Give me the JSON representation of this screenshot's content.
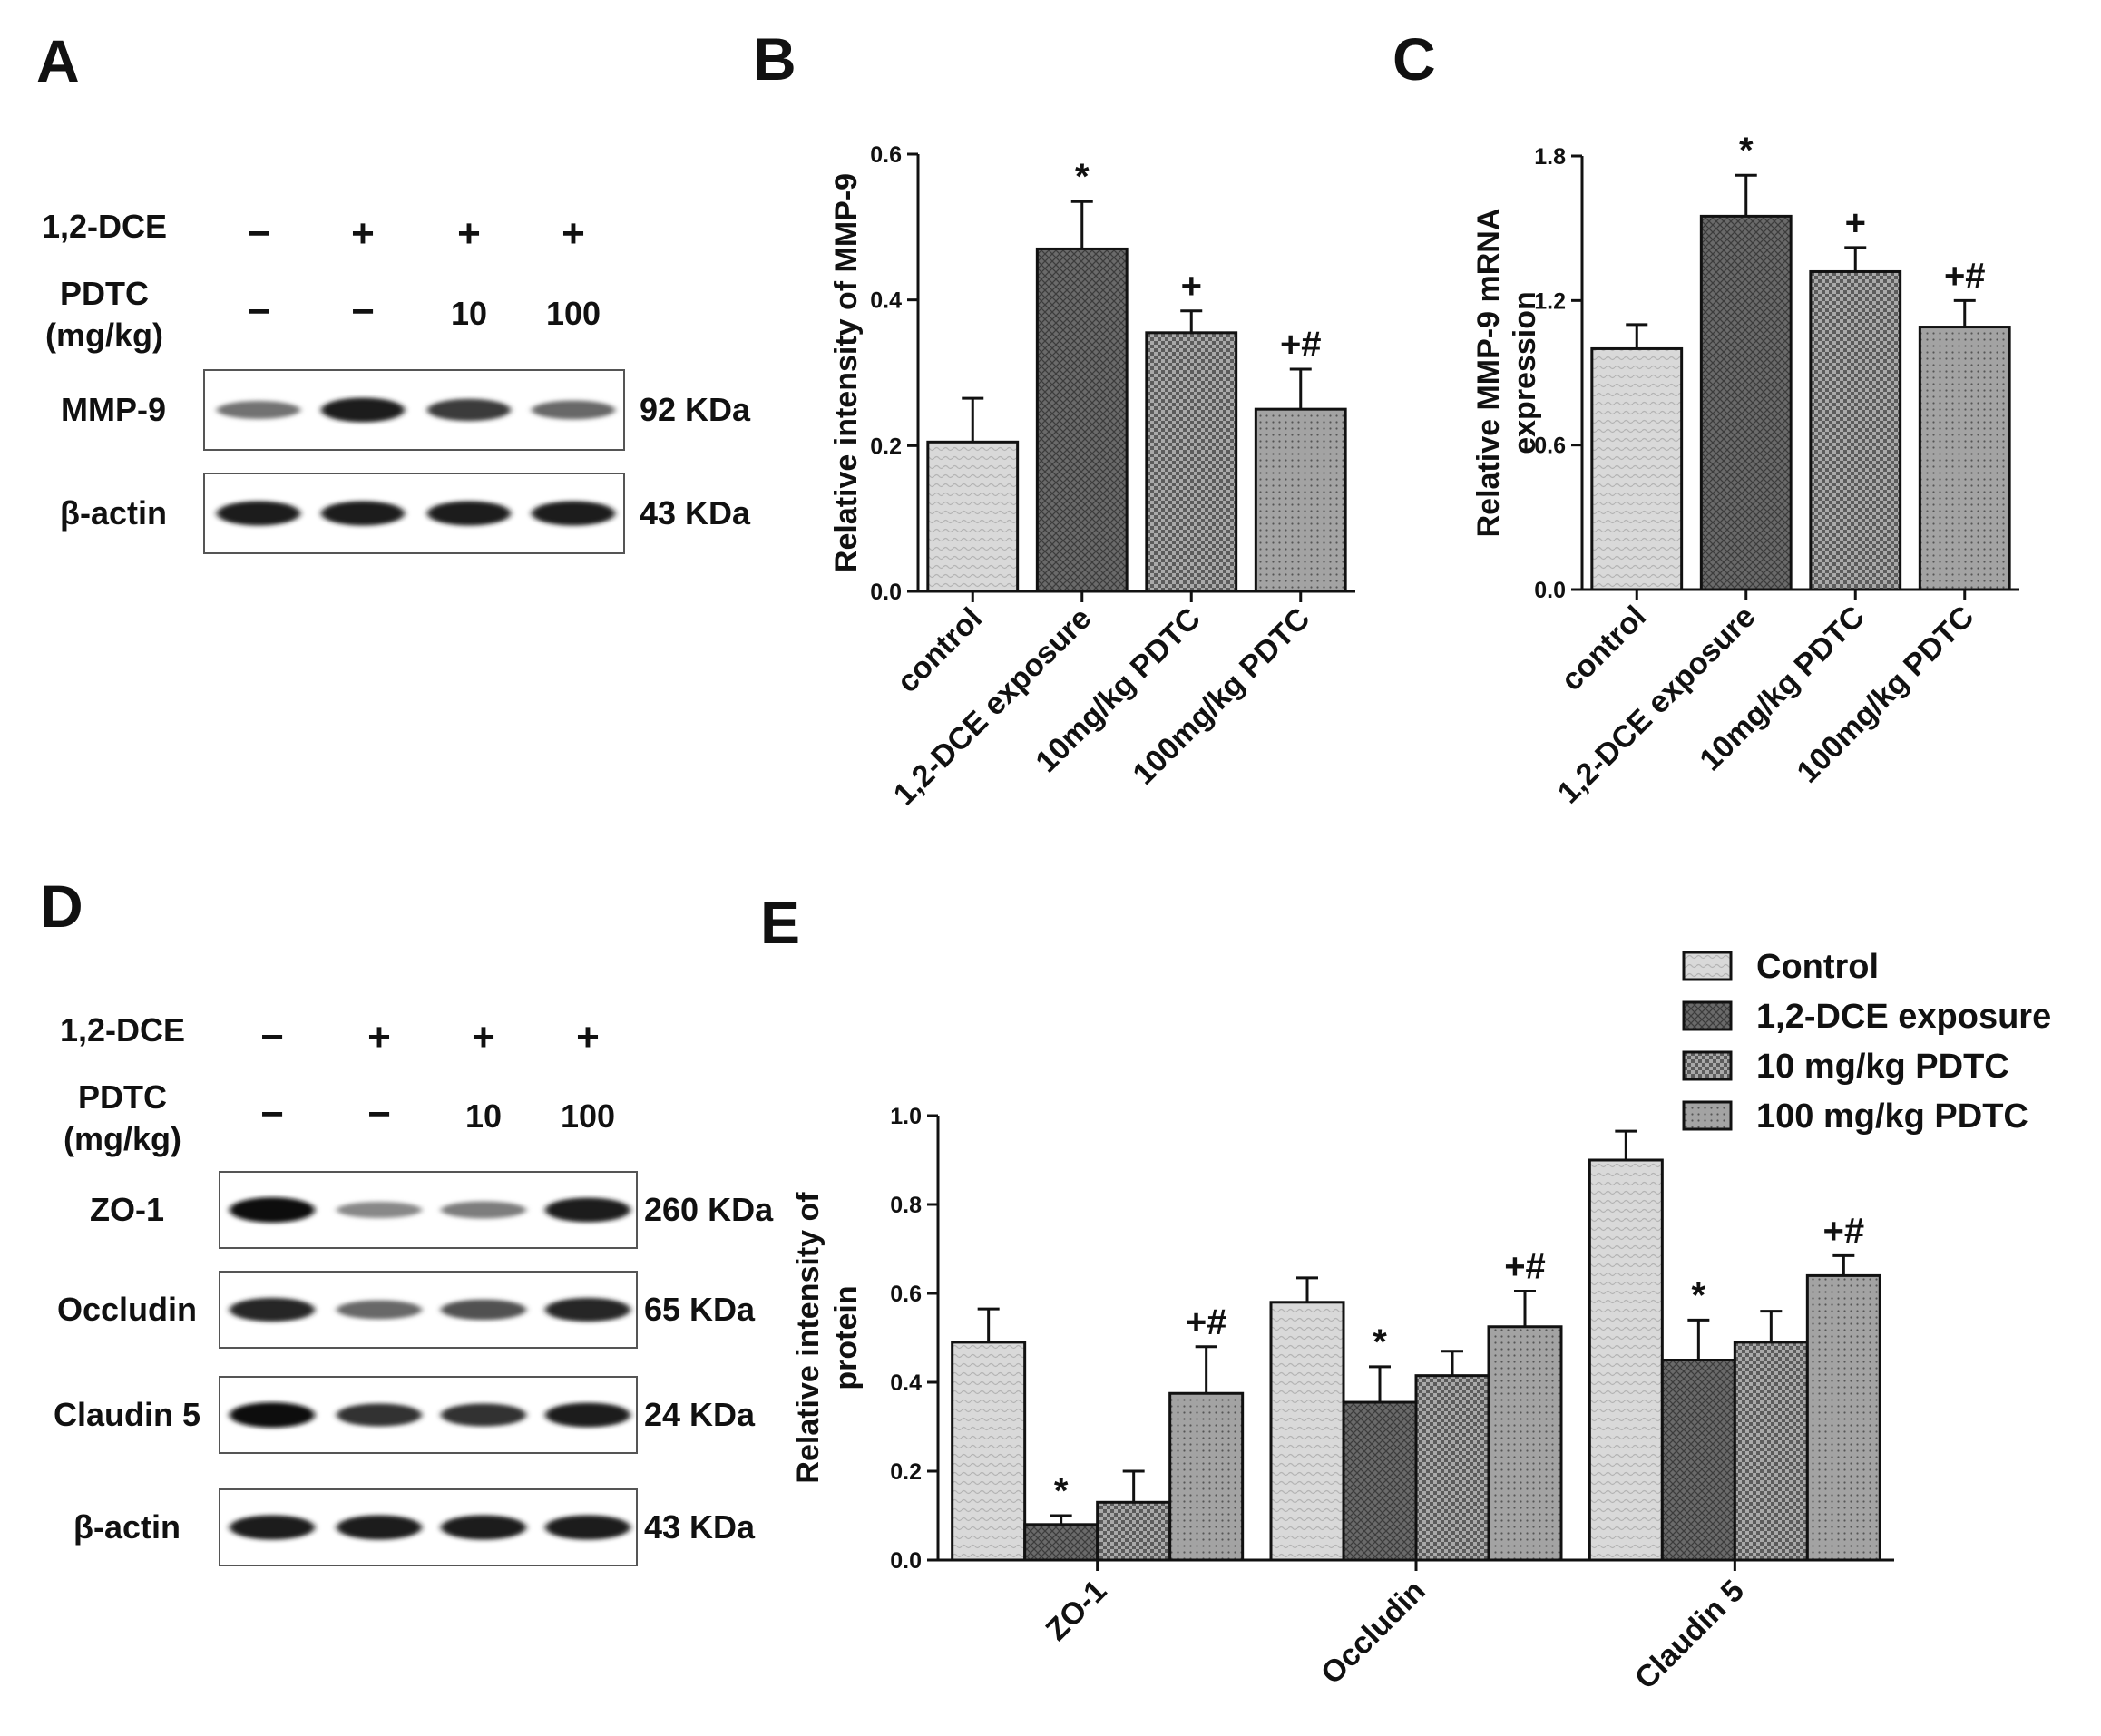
{
  "panels": {
    "A": {
      "letter": "A",
      "treatments": {
        "rows": [
          {
            "label": "1,2-DCE",
            "values": [
              "−",
              "+",
              "+",
              "+"
            ]
          },
          {
            "label": "PDTC",
            "label_unit": "(mg/kg)",
            "values": [
              "−",
              "−",
              "10",
              "100"
            ]
          }
        ]
      },
      "blots": [
        {
          "label": "MMP-9",
          "size": "92 KDa",
          "intensity": [
            0.55,
            0.95,
            0.8,
            0.6
          ]
        },
        {
          "label": "β-actin",
          "size": "43 KDa",
          "intensity": [
            0.95,
            0.95,
            0.95,
            0.95
          ]
        }
      ]
    },
    "B": {
      "letter": "B"
    },
    "C": {
      "letter": "C"
    },
    "D": {
      "letter": "D",
      "treatments": {
        "rows": [
          {
            "label": "1,2-DCE",
            "values": [
              "−",
              "+",
              "+",
              "+"
            ]
          },
          {
            "label": "PDTC",
            "label_unit": "(mg/kg)",
            "values": [
              "−",
              "−",
              "10",
              "100"
            ]
          }
        ]
      },
      "blots": [
        {
          "label": "ZO-1",
          "size": "260 KDa",
          "intensity": [
            1.0,
            0.45,
            0.5,
            0.95
          ]
        },
        {
          "label": "Occludin",
          "size": "65 KDa",
          "intensity": [
            0.9,
            0.6,
            0.7,
            0.9
          ]
        },
        {
          "label": "Claudin 5",
          "size": "24 KDa",
          "intensity": [
            1.0,
            0.85,
            0.85,
            0.95
          ]
        },
        {
          "label": "β-actin",
          "size": "43 KDa",
          "intensity": [
            0.95,
            0.95,
            0.95,
            0.95
          ]
        }
      ]
    },
    "E": {
      "letter": "E"
    }
  },
  "colors": {
    "control": "#d4d4d4",
    "dce": "#5e5e5e",
    "pdtc10": "#8e8e8e",
    "pdtc100": "#9a9a9a"
  },
  "chart_data": [
    {
      "panel": "B",
      "type": "bar",
      "ylabel": "Relative intensity of MMP-9",
      "ylim": [
        0,
        0.6
      ],
      "yticks": [
        "0.0",
        "0.2",
        "0.4",
        "0.6"
      ],
      "categories": [
        "control",
        "1,2-DCE exposure",
        "10mg/kg PDTC",
        "100mg/kg PDTC"
      ],
      "values": [
        0.205,
        0.47,
        0.355,
        0.25
      ],
      "errors": [
        0.06,
        0.065,
        0.03,
        0.055
      ],
      "annotations": [
        "",
        "*",
        "+",
        "+#"
      ]
    },
    {
      "panel": "C",
      "type": "bar",
      "ylabel": "Relative MMP-9 mRNA",
      "ylabel2": "expression",
      "ylim": [
        0,
        1.8
      ],
      "yticks": [
        "0.0",
        "0.6",
        "1.2",
        "1.8"
      ],
      "categories": [
        "control",
        "1,2-DCE exposure",
        "10mg/kg PDTC",
        "100mg/kg PDTC"
      ],
      "values": [
        1.0,
        1.55,
        1.32,
        1.09
      ],
      "errors": [
        0.1,
        0.17,
        0.1,
        0.11
      ],
      "annotations": [
        "",
        "*",
        "+",
        "+#"
      ]
    },
    {
      "panel": "E",
      "type": "bar",
      "ylabel": "Relative intensity of",
      "ylabel2": "protein",
      "ylim": [
        0,
        1.0
      ],
      "yticks": [
        "0.0",
        "0.2",
        "0.4",
        "0.6",
        "0.8",
        "1.0"
      ],
      "categories": [
        "ZO-1",
        "Occludin",
        "Claudin 5"
      ],
      "series": [
        {
          "name": "Control",
          "values": [
            0.49,
            0.58,
            0.9
          ],
          "errors": [
            0.075,
            0.055,
            0.065
          ],
          "annotations": [
            "",
            "",
            ""
          ]
        },
        {
          "name": "1,2-DCE exposure",
          "values": [
            0.08,
            0.355,
            0.45
          ],
          "errors": [
            0.02,
            0.08,
            0.09
          ],
          "annotations": [
            "*",
            "*",
            "*"
          ]
        },
        {
          "name": "10 mg/kg PDTC",
          "values": [
            0.13,
            0.415,
            0.49
          ],
          "errors": [
            0.07,
            0.055,
            0.07
          ],
          "annotations": [
            "",
            "",
            ""
          ]
        },
        {
          "name": "100 mg/kg PDTC",
          "values": [
            0.375,
            0.525,
            0.64
          ],
          "errors": [
            0.105,
            0.08,
            0.045
          ],
          "annotations": [
            "+#",
            "+#",
            "+#"
          ]
        }
      ],
      "legend": "top-right"
    }
  ]
}
